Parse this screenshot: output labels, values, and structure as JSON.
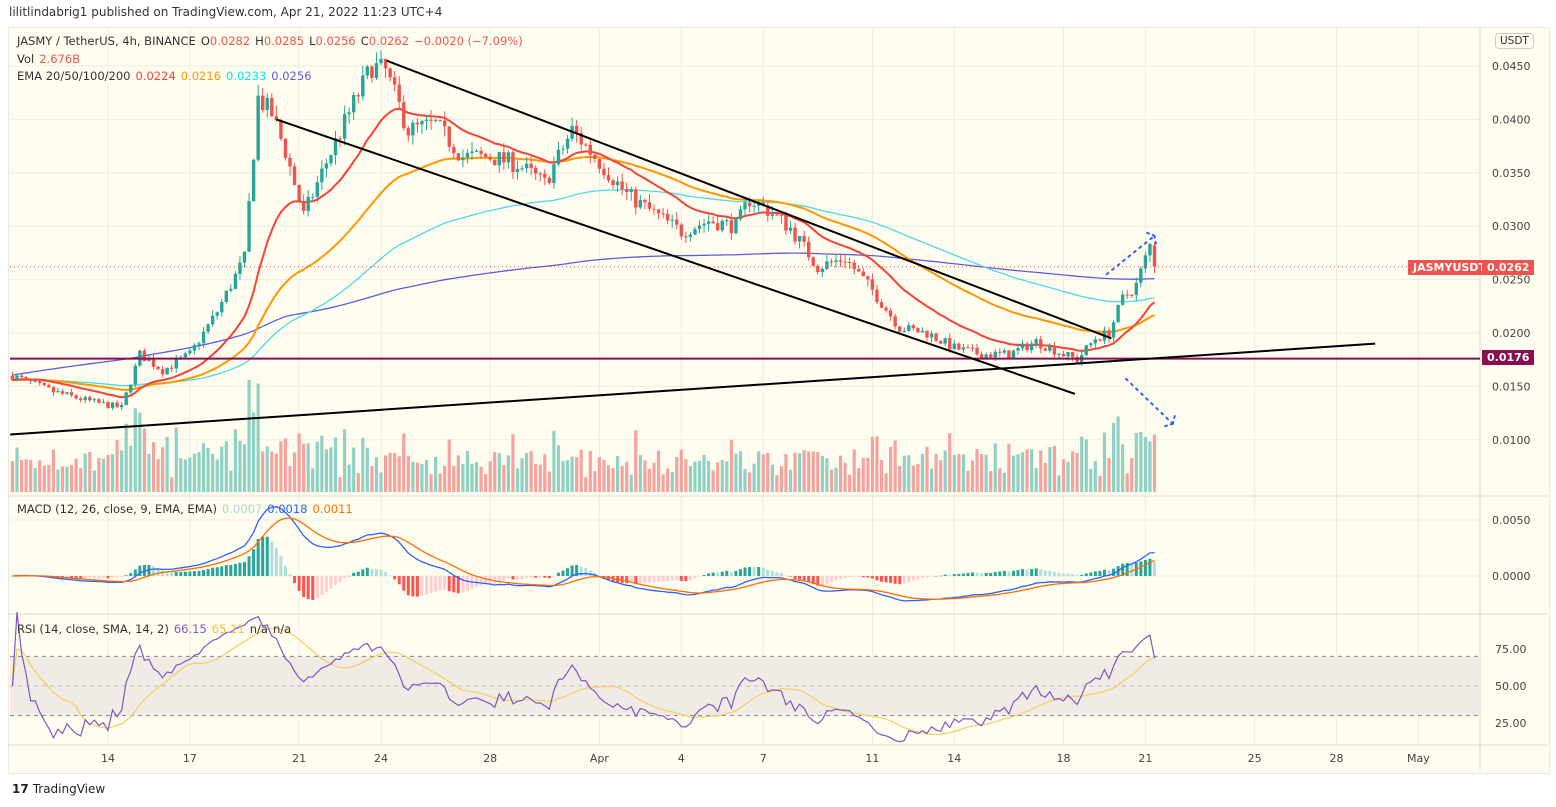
{
  "caption": "lilitlindabrig1 published on TradingView.com, Apr 21, 2022 11:23 UTC+4",
  "legend": {
    "symbol": "JASMY / TetherUS, 4h, BINANCE",
    "open_label": "O",
    "open": "0.0282",
    "high_label": "H",
    "high": "0.0285",
    "low_label": "L",
    "low": "0.0256",
    "close_label": "C",
    "close": "0.0262",
    "change": "−0.0020 (−7.09%)",
    "vol_label": "Vol",
    "vol": "2.676B",
    "ema_label": "EMA 20/50/100/200",
    "ema20": "0.0224",
    "ema50": "0.0216",
    "ema100": "0.0233",
    "ema200": "0.0256",
    "macd_label": "MACD (12, 26, close, 9, EMA, EMA)",
    "macd_hist": "0.0007",
    "macd_line": "0.0018",
    "macd_signal": "0.0011",
    "rsi_label": "RSI (14, close, SMA, 14, 2)",
    "rsi": "66.15",
    "rsi_ma": "65.11",
    "rsi_na1": "n/a",
    "rsi_na2": "n/a"
  },
  "currency_button": "USDT",
  "last_price_badge": {
    "symbol": "JASMYUSDT",
    "price": "0.0262"
  },
  "level_badge": "0.0176",
  "footer": "TradingView",
  "colors": {
    "up": "#26a69a",
    "down": "#ef5350",
    "vol_up": "#8fd1c4",
    "vol_down": "#f5a39f",
    "ema20": "#f44336",
    "ema50": "#ff9800",
    "ema100": "#4dd9e6",
    "ema200": "#5c5fd9",
    "macd": "#2962ff",
    "signal": "#ff6d00",
    "rsi": "#7e57c2",
    "rsi_ma": "#f5d76e",
    "level": "#880e4f",
    "trendline": "#000000",
    "arrow": "#2962ff",
    "background": "#fffdf0"
  },
  "chart_data": [
    {
      "type": "candlestick",
      "interval": "4h",
      "symbol": "JASMYUSDT",
      "y_ticks": [
        "0.0100",
        "0.0150",
        "0.0200",
        "0.0250",
        "0.0300",
        "0.0350",
        "0.0400",
        "0.0450"
      ],
      "x_ticks": [
        {
          "date": "2022-03-14",
          "label": "14"
        },
        {
          "date": "2022-03-17",
          "label": "17"
        },
        {
          "date": "2022-03-21",
          "label": "21"
        },
        {
          "date": "2022-03-24",
          "label": "24"
        },
        {
          "date": "2022-03-28",
          "label": "28"
        },
        {
          "date": "2022-04-01",
          "label": "Apr"
        },
        {
          "date": "2022-04-04",
          "label": "4"
        },
        {
          "date": "2022-04-07",
          "label": "7"
        },
        {
          "date": "2022-04-11",
          "label": "11"
        },
        {
          "date": "2022-04-14",
          "label": "14"
        },
        {
          "date": "2022-04-18",
          "label": "18"
        },
        {
          "date": "2022-04-21",
          "label": "21"
        },
        {
          "date": "2022-04-25",
          "label": "25"
        },
        {
          "date": "2022-04-28",
          "label": "28"
        },
        {
          "date": "2022-05-01",
          "label": "May"
        }
      ],
      "ylim": [
        0.005,
        0.0485
      ],
      "grid": true,
      "approx_close_path": [
        [
          "2022-03-10T12:00",
          0.016
        ],
        [
          "2022-03-12T00:00",
          0.0145
        ],
        [
          "2022-03-13T12:00",
          0.0135
        ],
        [
          "2022-03-14T12:00",
          0.013
        ],
        [
          "2022-03-15T04:00",
          0.018
        ],
        [
          "2022-03-16T00:00",
          0.0165
        ],
        [
          "2022-03-17T00:00",
          0.018
        ],
        [
          "2022-03-18T00:00",
          0.022
        ],
        [
          "2022-03-19T00:00",
          0.027
        ],
        [
          "2022-03-19T12:00",
          0.042
        ],
        [
          "2022-03-20T00:00",
          0.0405
        ],
        [
          "2022-03-20T12:00",
          0.037
        ],
        [
          "2022-03-21T04:00",
          0.031
        ],
        [
          "2022-03-22T00:00",
          0.036
        ],
        [
          "2022-03-23T00:00",
          0.0415
        ],
        [
          "2022-03-23T16:00",
          0.045
        ],
        [
          "2022-03-24T04:00",
          0.0445
        ],
        [
          "2022-03-25T00:00",
          0.039
        ],
        [
          "2022-03-26T00:00",
          0.0395
        ],
        [
          "2022-03-27T00:00",
          0.0365
        ],
        [
          "2022-03-28T00:00",
          0.0365
        ],
        [
          "2022-03-29T00:00",
          0.0358
        ],
        [
          "2022-03-30T00:00",
          0.034
        ],
        [
          "2022-03-31T00:00",
          0.039
        ],
        [
          "2022-04-01T00:00",
          0.036
        ],
        [
          "2022-04-02T00:00",
          0.033
        ],
        [
          "2022-04-03T00:00",
          0.0312
        ],
        [
          "2022-04-04T00:00",
          0.0295
        ],
        [
          "2022-04-05T00:00",
          0.0305
        ],
        [
          "2022-04-06T00:00",
          0.03
        ],
        [
          "2022-04-06T12:00",
          0.0325
        ],
        [
          "2022-04-07T04:00",
          0.0315
        ],
        [
          "2022-04-08T00:00",
          0.0298
        ],
        [
          "2022-04-09T00:00",
          0.0262
        ],
        [
          "2022-04-10T00:00",
          0.027
        ],
        [
          "2022-04-11T00:00",
          0.024
        ],
        [
          "2022-04-12T00:00",
          0.0205
        ],
        [
          "2022-04-13T00:00",
          0.02
        ],
        [
          "2022-04-14T00:00",
          0.0186
        ],
        [
          "2022-04-15T00:00",
          0.018
        ],
        [
          "2022-04-16T00:00",
          0.018
        ],
        [
          "2022-04-17T00:00",
          0.0192
        ],
        [
          "2022-04-18T00:00",
          0.018
        ],
        [
          "2022-04-18T12:00",
          0.0175
        ],
        [
          "2022-04-19T04:00",
          0.0195
        ],
        [
          "2022-04-19T16:00",
          0.02
        ],
        [
          "2022-04-20T04:00",
          0.0232
        ],
        [
          "2022-04-20T16:00",
          0.0245
        ],
        [
          "2022-04-21T04:00",
          0.0282
        ],
        [
          "2022-04-21T08:00",
          0.0262
        ]
      ],
      "indicators": [
        "Volume",
        "EMA 20",
        "EMA 50",
        "EMA 100",
        "EMA 200"
      ],
      "drawings": {
        "horizontal_level": 0.0176,
        "last_price": 0.0262,
        "trendlines": [
          {
            "from": [
              "2022-03-24T05:00",
              0.0455
            ],
            "to": [
              "2022-04-19T18:00",
              0.0195
            ]
          },
          {
            "from": [
              "2022-03-20T04:00",
              0.04
            ],
            "to": [
              "2022-04-18T10:00",
              0.0143
            ]
          },
          {
            "from": [
              "2022-03-10T10:00",
              0.0105
            ],
            "to": [
              "2022-04-29T10:00",
              0.019
            ]
          }
        ],
        "dotted_arrows": [
          {
            "from": [
              "2022-04-19T14:00",
              0.0255
            ],
            "to": [
              "2022-04-21T08:00",
              0.0291
            ]
          },
          {
            "from": [
              "2022-04-20T07:00",
              0.0157
            ],
            "to": [
              "2022-04-22T00:00",
              0.0115
            ]
          }
        ]
      }
    },
    {
      "type": "line",
      "name": "MACD (12, 26, close, 9, EMA, EMA)",
      "y_ticks": [
        "0.0000",
        "0.0050"
      ],
      "ylim": [
        -0.0025,
        0.0075
      ]
    },
    {
      "type": "line",
      "name": "RSI (14, close, SMA, 14, 2)",
      "y_ticks": [
        "25.00",
        "50.00",
        "75.00"
      ],
      "ylim": [
        15,
        95
      ],
      "band": [
        30,
        70
      ]
    }
  ]
}
